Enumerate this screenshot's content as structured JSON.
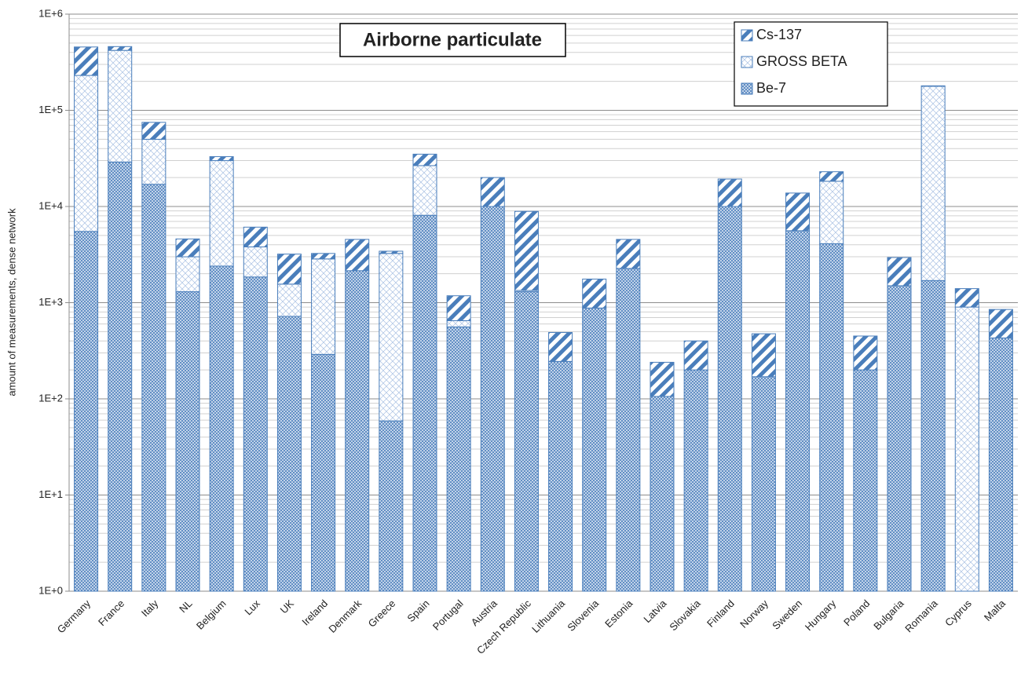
{
  "chart_data": {
    "type": "stacked_bar",
    "title": "Airborne particulate",
    "y_label": "amount of measurements, dense network",
    "categories": [
      "Germany",
      "France",
      "Italy",
      "NL",
      "Belgium",
      "Lux",
      "UK",
      "Ireland",
      "Denmark",
      "Greece",
      "Spain",
      "Portugal",
      "Austria",
      "Czech Republic",
      "Lithuania",
      "Slovenia",
      "Estonia",
      "Latvia",
      "Slovakia",
      "Finland",
      "Norway",
      "Sweden",
      "Hungary",
      "Poland",
      "Bulgaria",
      "Romania",
      "Cyprus",
      "Malta"
    ],
    "series": [
      {
        "name": "Be-7",
        "color": "#4a7ebb",
        "pattern": "dense-cross",
        "values": [
          5500,
          29000,
          17000,
          1300,
          2400,
          1850,
          720,
          290,
          2150,
          59,
          8100,
          560,
          10000,
          1300,
          245,
          880,
          2270,
          106,
          200,
          10000,
          170,
          5600,
          4100,
          200,
          1500,
          1700,
          0,
          430
        ]
      },
      {
        "name": "GROSS BETA",
        "color": "#4a7ebb",
        "pattern": "light-cross",
        "values": [
          225000,
          391000,
          33000,
          1700,
          27600,
          1950,
          840,
          2560,
          0,
          3190,
          18500,
          90,
          0,
          40,
          0,
          0,
          0,
          0,
          0,
          0,
          0,
          0,
          14200,
          0,
          0,
          176000,
          900,
          0
        ]
      },
      {
        "name": "Cs-137",
        "color": "#4a7ebb",
        "pattern": "stripes",
        "values": [
          225000,
          40000,
          25000,
          1600,
          3000,
          2300,
          1640,
          400,
          2400,
          180,
          8400,
          530,
          10000,
          7560,
          245,
          880,
          2280,
          134,
          200,
          9300,
          305,
          8200,
          4700,
          250,
          1450,
          2000,
          500,
          420
        ]
      }
    ],
    "log_scale": true,
    "ylim": [
      1,
      1000000
    ],
    "yticks": [
      {
        "value": 1,
        "label": "1E+0"
      },
      {
        "value": 10,
        "label": "1E+1"
      },
      {
        "value": 100,
        "label": "1E+2"
      },
      {
        "value": 1000,
        "label": "1E+3"
      },
      {
        "value": 10000,
        "label": "1E+4"
      },
      {
        "value": 100000,
        "label": "1E+5"
      },
      {
        "value": 1000000,
        "label": "1E+6"
      }
    ],
    "grid": true,
    "minor_grid": true,
    "legend": "upper right"
  }
}
